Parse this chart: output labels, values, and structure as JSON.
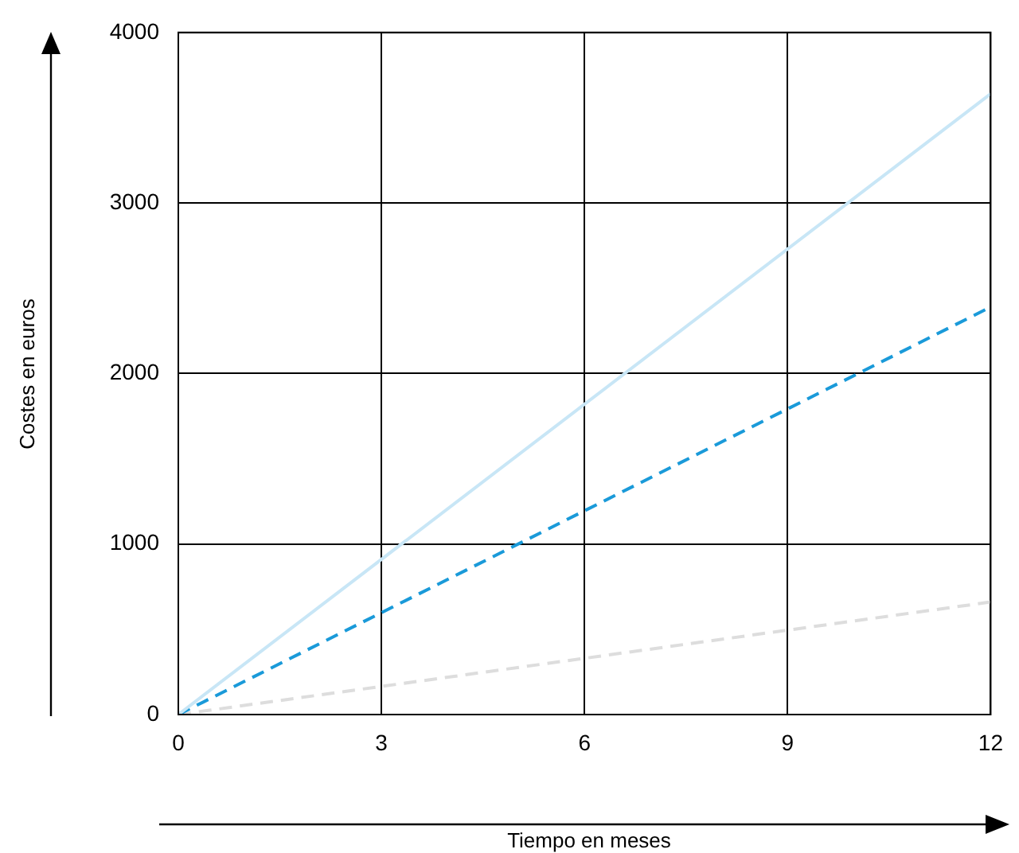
{
  "chart_data": {
    "type": "line",
    "xlabel": "Tiempo en meses",
    "ylabel": "Costes en euros",
    "x": [
      0,
      12
    ],
    "series": [
      {
        "color": "#c8e6f6",
        "values": [
          0,
          3640
        ],
        "line_style": "solid"
      },
      {
        "color": "#1a9ad9",
        "values": [
          0,
          2390
        ],
        "line_style": "dashed"
      },
      {
        "color": "#dddddd",
        "values": [
          0,
          660
        ],
        "line_style": "dashed"
      }
    ],
    "xlim": [
      0,
      12
    ],
    "xticks": [
      0,
      3,
      6,
      9,
      12
    ],
    "ylim": [
      0,
      4000
    ],
    "yticks": [
      0,
      1000,
      2000,
      3000,
      4000
    ],
    "grid": true,
    "legend": false,
    "marker": "none"
  }
}
